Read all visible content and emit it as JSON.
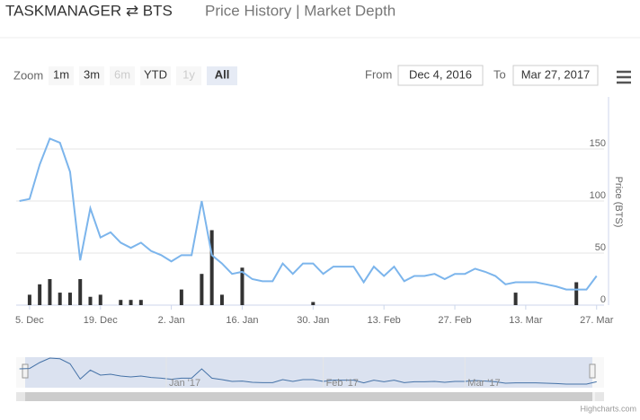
{
  "header": {
    "pair": "TASKMANAGER ⇄ BTS",
    "tabs": "Price History | Market Depth"
  },
  "range_selector": {
    "zoom_label": "Zoom",
    "buttons": [
      "1m",
      "3m",
      "6m",
      "YTD",
      "1y",
      "All"
    ],
    "disabled": [
      "6m",
      "1y"
    ],
    "selected": "All",
    "from_label": "From",
    "from": "Dec 4, 2016",
    "to_label": "To",
    "to": "Mar 27, 2017"
  },
  "navigator": {
    "labels": [
      {
        "value": "2017-01-01",
        "label": "Jan '17"
      },
      {
        "value": "2017-02-01",
        "label": "Feb '17"
      },
      {
        "value": "2017-03-01",
        "label": "Mar '17"
      }
    ]
  },
  "credits": "Highcharts.com",
  "chart_data": {
    "type": "line",
    "y_label": "Price (BTS)",
    "x": [
      "2016-12-03",
      "2016-12-05",
      "2016-12-07",
      "2016-12-09",
      "2016-12-11",
      "2016-12-13",
      "2016-12-15",
      "2016-12-17",
      "2016-12-19",
      "2016-12-21",
      "2016-12-23",
      "2016-12-25",
      "2016-12-27",
      "2016-12-29",
      "2016-12-31",
      "2017-01-02",
      "2017-01-04",
      "2017-01-06",
      "2017-01-08",
      "2017-01-10",
      "2017-01-12",
      "2017-01-14",
      "2017-01-16",
      "2017-01-18",
      "2017-01-20",
      "2017-01-22",
      "2017-01-24",
      "2017-01-26",
      "2017-01-28",
      "2017-01-30",
      "2017-02-01",
      "2017-02-03",
      "2017-02-05",
      "2017-02-07",
      "2017-02-09",
      "2017-02-11",
      "2017-02-13",
      "2017-02-15",
      "2017-02-17",
      "2017-02-19",
      "2017-02-21",
      "2017-02-23",
      "2017-02-25",
      "2017-02-27",
      "2017-03-01",
      "2017-03-03",
      "2017-03-05",
      "2017-03-07",
      "2017-03-09",
      "2017-03-11",
      "2017-03-13",
      "2017-03-15",
      "2017-03-17",
      "2017-03-19",
      "2017-03-21",
      "2017-03-23",
      "2017-03-25",
      "2017-03-27"
    ],
    "series": [
      {
        "type": "line",
        "color": "#7cb5ec",
        "values": [
          100,
          102,
          135,
          160,
          156,
          128,
          43,
          93,
          65,
          70,
          60,
          55,
          60,
          52,
          48,
          42,
          48,
          48,
          100,
          48,
          40,
          30,
          32,
          25,
          23,
          23,
          40,
          30,
          40,
          40,
          30,
          37,
          37,
          37,
          22,
          37,
          28,
          37,
          23,
          28,
          28,
          30,
          25,
          30,
          30,
          35,
          32,
          28,
          20,
          22,
          22,
          22,
          20,
          18,
          15,
          15,
          15,
          28
        ]
      },
      {
        "type": "bar",
        "axis": "y2",
        "color": "#333333",
        "values": [
          0,
          10,
          20,
          25,
          12,
          12,
          25,
          8,
          10,
          0,
          5,
          5,
          5,
          0,
          0,
          0,
          15,
          0,
          30,
          72,
          10,
          0,
          36,
          0,
          0,
          0,
          0,
          0,
          0,
          3,
          0,
          0,
          0,
          0,
          0,
          0,
          0,
          0,
          0,
          0,
          0,
          0,
          0,
          0,
          0,
          0,
          0,
          0,
          0,
          12,
          0,
          0,
          0,
          0,
          0,
          22,
          0,
          0
        ]
      }
    ],
    "xlim": [
      "2016-12-02",
      "2017-03-29"
    ],
    "xticks": [
      {
        "value": "2016-12-05",
        "label": "5. Dec"
      },
      {
        "value": "2016-12-19",
        "label": "19. Dec"
      },
      {
        "value": "2017-01-02",
        "label": "2. Jan"
      },
      {
        "value": "2017-01-16",
        "label": "16. Jan"
      },
      {
        "value": "2017-01-30",
        "label": "30. Jan"
      },
      {
        "value": "2017-02-13",
        "label": "13. Feb"
      },
      {
        "value": "2017-02-27",
        "label": "27. Feb"
      },
      {
        "value": "2017-03-13",
        "label": "13. Mar"
      },
      {
        "value": "2017-03-27",
        "label": "27. Mar"
      }
    ],
    "ylim": [
      0,
      200
    ],
    "yticks": [
      0,
      50,
      100,
      150
    ],
    "y2lim": [
      0,
      200
    ],
    "grid": true
  }
}
